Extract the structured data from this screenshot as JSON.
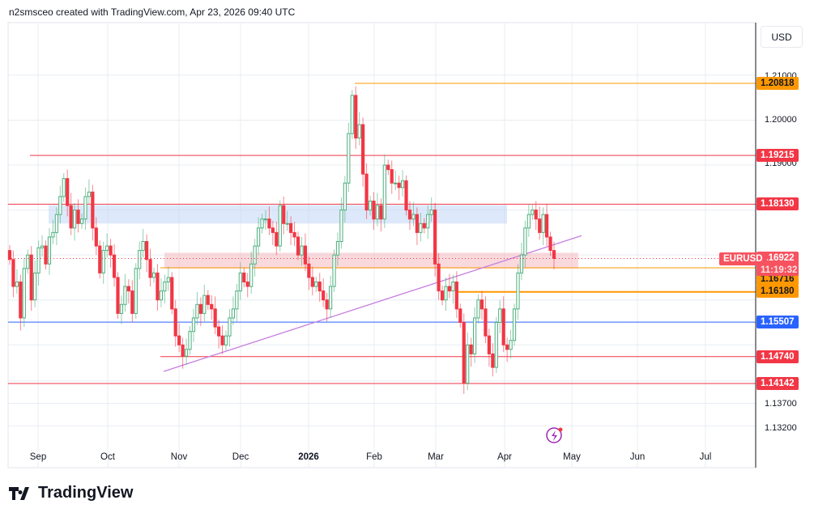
{
  "header": {
    "attribution": "n2smsceo created with TradingView.com, Apr 23, 2026 09:40 UTC"
  },
  "currency_button": "USD",
  "footer": {
    "logo_text": "TradingView"
  },
  "chart_data": {
    "type": "candlestick",
    "symbol": "EURUSD",
    "timeframe_label": "11:19:32",
    "last_price": 1.16922,
    "colors": {
      "up": "#4caf7d",
      "down": "#f23645",
      "grid": "#e8edf2"
    },
    "x_ticks": [
      "Sep",
      "Oct",
      "Nov",
      "Dec",
      "2026",
      "Feb",
      "Mar",
      "Apr",
      "May",
      "Jun",
      "Jul"
    ],
    "y_ticks": [
      "1.21000",
      "1.20000",
      "1.19000",
      "1.13700",
      "1.13200"
    ],
    "ylim": [
      1.128,
      1.2165
    ],
    "closes": [
      1.169,
      1.163,
      1.164,
      1.156,
      1.167,
      1.17,
      1.16,
      1.166,
      1.1716,
      1.172,
      1.168,
      1.174,
      1.175,
      1.179,
      1.183,
      1.187,
      1.181,
      1.176,
      1.18,
      1.177,
      1.178,
      1.183,
      1.184,
      1.176,
      1.172,
      1.166,
      1.171,
      1.172,
      1.17,
      1.165,
      1.157,
      1.159,
      1.163,
      1.162,
      1.157,
      1.167,
      1.171,
      1.173,
      1.169,
      1.165,
      1.166,
      1.16,
      1.162,
      1.164,
      1.165,
      1.158,
      1.152,
      1.15,
      1.1475,
      1.149,
      1.153,
      1.156,
      1.159,
      1.157,
      1.161,
      1.159,
      1.158,
      1.154,
      1.152,
      1.15,
      1.152,
      1.156,
      1.158,
      1.162,
      1.166,
      1.164,
      1.163,
      1.168,
      1.172,
      1.176,
      1.178,
      1.178,
      1.176,
      1.175,
      1.172,
      1.181,
      1.177,
      1.177,
      1.175,
      1.174,
      1.17,
      1.172,
      1.168,
      1.165,
      1.163,
      1.164,
      1.162,
      1.16,
      1.158,
      1.163,
      1.17,
      1.173,
      1.18,
      1.186,
      1.197,
      1.2055,
      1.196,
      1.199,
      1.188,
      1.18,
      1.182,
      1.178,
      1.181,
      1.178,
      1.19,
      1.189,
      1.186,
      1.186,
      1.185,
      1.1865,
      1.18,
      1.178,
      1.179,
      1.175,
      1.177,
      1.176,
      1.179,
      1.18,
      1.168,
      1.162,
      1.16,
      1.163,
      1.162,
      1.164,
      1.158,
      1.155,
      1.1415,
      1.15,
      1.148,
      1.156,
      1.16,
      1.158,
      1.152,
      1.148,
      1.145,
      1.155,
      1.158,
      1.15,
      1.149,
      1.151,
      1.158,
      1.166,
      1.17,
      1.176,
      1.179,
      1.18,
      1.178,
      1.175,
      1.179,
      1.174,
      1.171,
      1.16922
    ],
    "levels": [
      {
        "price": "1.20818",
        "color": "#ff9800",
        "text": "#131722",
        "from": "Jan 27"
      },
      {
        "price": "1.19215",
        "color": "#f23645",
        "text": "#ffffff",
        "from": "Aug 25"
      },
      {
        "price": "1.18130",
        "color": "#f23645",
        "text": "#ffffff",
        "from": "start"
      },
      {
        "price": "1.16716",
        "color": "#ff9800",
        "text": "#131722",
        "from": "Oct 28"
      },
      {
        "price": "1.16180",
        "color": "#ff9800",
        "text": "#131722",
        "from": "Mar 10"
      },
      {
        "price": "1.15507",
        "color": "#2962ff",
        "text": "#ffffff",
        "from": "start"
      },
      {
        "price": "1.14740",
        "color": "#f23645",
        "text": "#ffffff",
        "from": "Oct 28"
      },
      {
        "price": "1.14142",
        "color": "#f23645",
        "text": "#ffffff",
        "from": "start"
      }
    ],
    "zones": [
      {
        "name": "resistance-zone",
        "top": 1.1811,
        "bottom": 1.177,
        "color": "#bbd3f5"
      },
      {
        "name": "pivot-zone",
        "top": 1.1705,
        "bottom": 1.167,
        "color": "#f6b4bb"
      }
    ],
    "trendline": {
      "start": 1.1441,
      "end": 1.1743,
      "color": "#c77ee0"
    }
  }
}
